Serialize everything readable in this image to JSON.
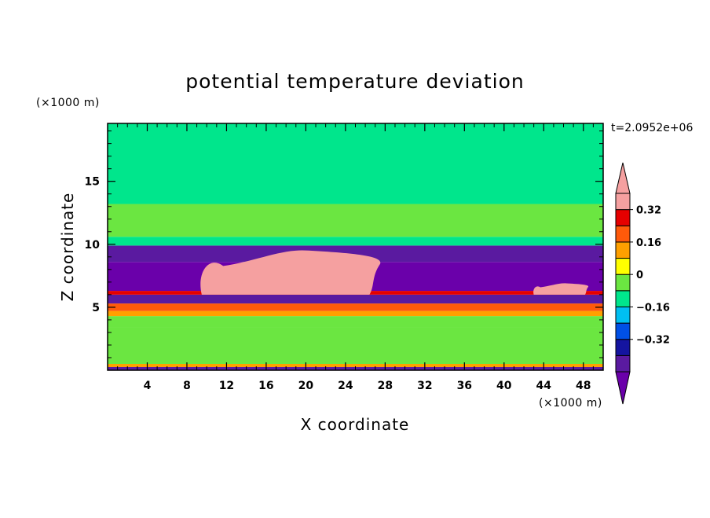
{
  "chart_data": {
    "type": "heatmap",
    "title": "potential temperature deviation",
    "xlabel": "X coordinate",
    "ylabel": "Z coordinate",
    "x_unit": "(×1000 m)",
    "y_unit": "(×1000 m)",
    "timestamp": "t=2.0952e+06",
    "xlim": [
      0,
      50
    ],
    "ylim": [
      0,
      19.6
    ],
    "x_ticks": [
      4,
      8,
      12,
      16,
      20,
      24,
      28,
      32,
      36,
      40,
      44,
      48
    ],
    "y_ticks": [
      5,
      10,
      15
    ],
    "colorbar": {
      "levels": [
        -0.48,
        -0.4,
        -0.32,
        -0.24,
        -0.16,
        -0.08,
        0,
        0.08,
        0.16,
        0.24,
        0.32,
        0.4
      ],
      "colors": [
        "#6a00aa",
        "#5a1aa0",
        "#1414a0",
        "#0050e6",
        "#00bff2",
        "#00e68c",
        "#6be641",
        "#ffff00",
        "#ffa000",
        "#ff5a0a",
        "#e60000",
        "#f5a0a0"
      ],
      "labels": [
        {
          "value": -0.32,
          "text": "−0.32"
        },
        {
          "value": -0.16,
          "text": "−0.16"
        },
        {
          "value": 0,
          "text": "0"
        },
        {
          "value": 0.16,
          "text": "0.16"
        },
        {
          "value": 0.32,
          "text": "0.32"
        }
      ]
    },
    "layers": [
      {
        "z0": 0.0,
        "z1": 0.25,
        "value": -0.35
      },
      {
        "z0": 0.25,
        "z1": 0.5,
        "value": 0.17
      },
      {
        "z0": 0.5,
        "z1": 3.4,
        "value": 0.02
      },
      {
        "z0": 3.4,
        "z1": 4.3,
        "value": 0.03
      },
      {
        "z0": 4.3,
        "z1": 4.7,
        "value": 0.18
      },
      {
        "z0": 4.7,
        "z1": 5.3,
        "value": 0.27
      },
      {
        "z0": 5.3,
        "z1": 6.0,
        "value": -0.4
      },
      {
        "z0": 6.0,
        "z1": 6.3,
        "value": 0.35
      },
      {
        "z0": 6.3,
        "z1": 8.6,
        "value": -0.42
      },
      {
        "z0": 8.6,
        "z1": 9.9,
        "value": -0.33
      },
      {
        "z0": 9.9,
        "z1": 10.6,
        "value": -0.05
      },
      {
        "z0": 10.6,
        "z1": 13.2,
        "value": 0.05
      },
      {
        "z0": 13.2,
        "z1": 19.6,
        "value": -0.02
      }
    ],
    "warm_anomalies": [
      {
        "x": [
          9.5,
          27.5
        ],
        "z": [
          6.0,
          9.5
        ],
        "value": 0.45
      },
      {
        "x": [
          43.0,
          48.5
        ],
        "z": [
          6.0,
          6.9
        ],
        "value": 0.45
      }
    ]
  }
}
